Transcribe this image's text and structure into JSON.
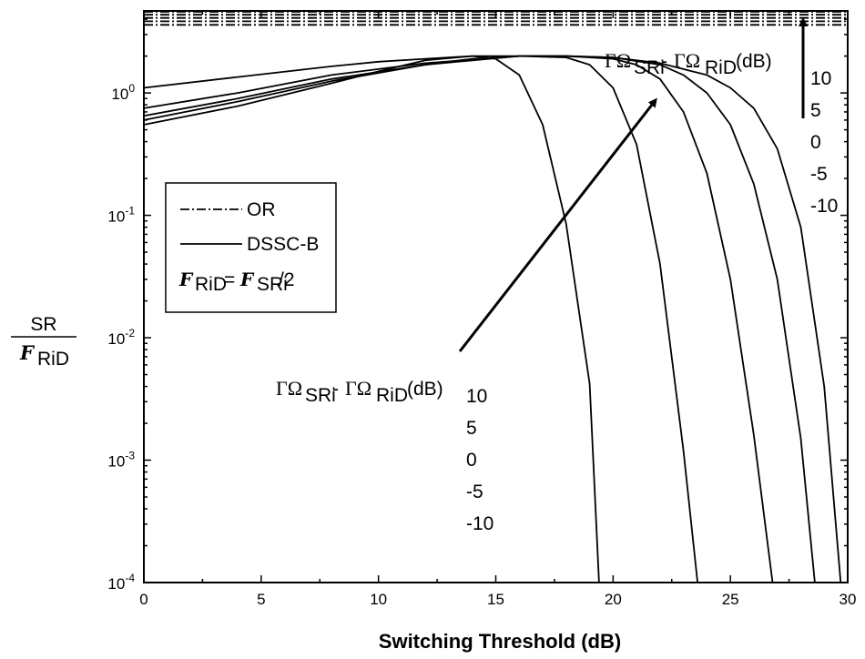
{
  "chart_data": {
    "type": "line",
    "xlabel": "Switching Threshold (dB)",
    "ylabel_num": "SR",
    "ylabel_den_script": "F",
    "ylabel_den_sub": "RiD",
    "xlim": [
      0,
      30
    ],
    "ylim_log10": [
      -4,
      0.67
    ],
    "x_ticks": [
      {
        "v": 0,
        "label": "0"
      },
      {
        "v": 5,
        "label": "5"
      },
      {
        "v": 10,
        "label": "10"
      },
      {
        "v": 15,
        "label": "15"
      },
      {
        "v": 20,
        "label": "20"
      },
      {
        "v": 25,
        "label": "25"
      },
      {
        "v": 30,
        "label": "30"
      }
    ],
    "y_ticks": [
      {
        "e": 0,
        "base": "10",
        "exp": "0"
      },
      {
        "e": -1,
        "base": "10",
        "exp": "-1"
      },
      {
        "e": -2,
        "base": "10",
        "exp": "-2"
      },
      {
        "e": -3,
        "base": "10",
        "exp": "-3"
      },
      {
        "e": -4,
        "base": "10",
        "exp": "-4"
      }
    ],
    "y_scale": "log",
    "grid": false,
    "legend": {
      "position": "left",
      "entries": [
        {
          "style": "dashdot",
          "label": "OR"
        },
        {
          "style": "solid",
          "label": "DSSC-B"
        }
      ],
      "note": {
        "a": "F",
        "a_sub": "RiD",
        "eq": "= ",
        "b": "F",
        "b_sub": "SRi",
        "tail": "/2"
      }
    },
    "series": [
      {
        "style": "solid",
        "group": "DSSC-B",
        "x": [
          0,
          4,
          8,
          10,
          12,
          14,
          15,
          16,
          17,
          18,
          19,
          19.4
        ],
        "y": [
          0.55,
          0.78,
          1.2,
          1.5,
          1.85,
          2.0,
          1.9,
          1.4,
          0.55,
          0.085,
          0.0042,
          0.0001
        ]
      },
      {
        "style": "solid",
        "group": "DSSC-B",
        "x": [
          0,
          4,
          8,
          12,
          14,
          16,
          18,
          19,
          20,
          21,
          22,
          23,
          23.6
        ],
        "y": [
          0.6,
          0.85,
          1.25,
          1.7,
          1.9,
          2.0,
          1.95,
          1.7,
          1.1,
          0.38,
          0.04,
          0.0012,
          0.0001
        ]
      },
      {
        "style": "solid",
        "group": "DSSC-B",
        "x": [
          0,
          4,
          8,
          12,
          16,
          18,
          20,
          21,
          22,
          23,
          24,
          25,
          26,
          26.8
        ],
        "y": [
          0.65,
          0.9,
          1.3,
          1.7,
          2.0,
          2.0,
          1.9,
          1.7,
          1.3,
          0.7,
          0.22,
          0.03,
          0.0016,
          0.0001
        ]
      },
      {
        "style": "solid",
        "group": "DSSC-B",
        "x": [
          0,
          4,
          8,
          12,
          16,
          18,
          20,
          22,
          23,
          24,
          25,
          26,
          27,
          28,
          28.6
        ],
        "y": [
          0.75,
          1.0,
          1.4,
          1.75,
          2.0,
          2.0,
          1.95,
          1.7,
          1.4,
          1.0,
          0.55,
          0.18,
          0.03,
          0.0015,
          0.0001
        ]
      },
      {
        "style": "solid",
        "group": "DSSC-B",
        "x": [
          0,
          4,
          8,
          10,
          12,
          14,
          16,
          18,
          20,
          22,
          24,
          25,
          26,
          27,
          28,
          29,
          29.7
        ],
        "y": [
          1.1,
          1.35,
          1.65,
          1.8,
          1.9,
          2.0,
          2.0,
          2.0,
          1.95,
          1.75,
          1.4,
          1.1,
          0.75,
          0.35,
          0.08,
          0.004,
          0.0001
        ]
      },
      {
        "style": "dashdot",
        "group": "OR",
        "x": [
          0,
          30
        ],
        "y": [
          3.6,
          3.6
        ]
      },
      {
        "style": "dashdot",
        "group": "OR",
        "x": [
          0,
          30
        ],
        "y": [
          3.85,
          3.85
        ]
      },
      {
        "style": "dashdot",
        "group": "OR",
        "x": [
          0,
          30
        ],
        "y": [
          4.1,
          4.1
        ]
      },
      {
        "style": "dashdot",
        "group": "OR",
        "x": [
          0,
          30
        ],
        "y": [
          4.35,
          4.35
        ]
      },
      {
        "style": "dashdot",
        "group": "OR",
        "x": [
          0,
          30
        ],
        "y": [
          4.6,
          4.6
        ]
      }
    ],
    "annotations": {
      "dsscb_caption": {
        "g1": "ΓΩ",
        "s1": "SRi",
        "mid": "- ",
        "g2": "ΓΩ",
        "s2": "RiD",
        "unit": " (dB)"
      },
      "dsscb_values": [
        "10",
        "5",
        "0",
        "-5",
        "-10"
      ],
      "or_caption": {
        "g1": "ΓΩ",
        "s1": "SRi",
        "mid": "- ",
        "g2": "ΓΩ",
        "s2": "RiD",
        "unit": " (dB)"
      },
      "or_values": [
        "10",
        "5",
        "0",
        "-5",
        "-10"
      ]
    }
  }
}
